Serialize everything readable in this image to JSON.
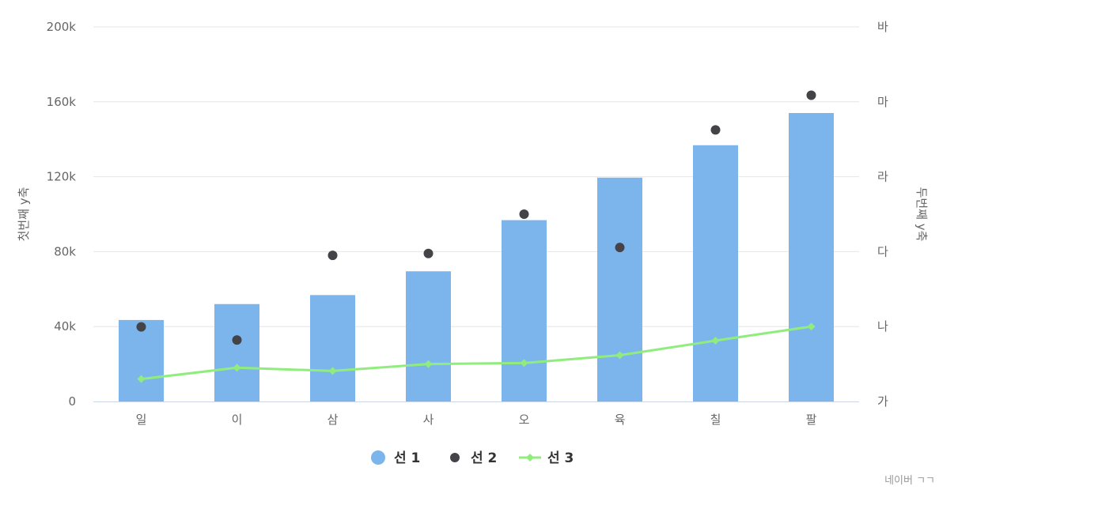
{
  "chart_data": {
    "type": "bar",
    "categories": [
      "일",
      "이",
      "삼",
      "사",
      "오",
      "육",
      "칠",
      "팔"
    ],
    "series": [
      {
        "name": "선 1",
        "type": "bar",
        "color": "#7cb5ec",
        "axis": "left",
        "values": [
          43500,
          52000,
          56800,
          69500,
          96800,
          119500,
          136800,
          154000
        ]
      },
      {
        "name": "선 2",
        "type": "scatter",
        "color": "#434348",
        "axis": "left",
        "values": [
          39800,
          32800,
          78000,
          79000,
          100000,
          82200,
          145000,
          163500
        ]
      },
      {
        "name": "선 3",
        "type": "line",
        "color": "#90ed7d",
        "axis": "left",
        "values": [
          12000,
          18000,
          16300,
          20000,
          20500,
          24700,
          32500,
          40000
        ]
      }
    ],
    "y_left": {
      "title": "첫번째 y축",
      "range": [
        0,
        200000
      ],
      "ticks": [
        0,
        40000,
        80000,
        120000,
        160000,
        200000
      ],
      "tick_labels": [
        "0",
        "40k",
        "80k",
        "120k",
        "160k",
        "200k"
      ]
    },
    "y_right": {
      "title": "두번째 y축",
      "tick_labels": [
        "가",
        "나",
        "다",
        "라",
        "마",
        "바"
      ]
    },
    "grid": true,
    "legend": "bottom-center",
    "credit": "네이버 ㄱㄱ"
  }
}
